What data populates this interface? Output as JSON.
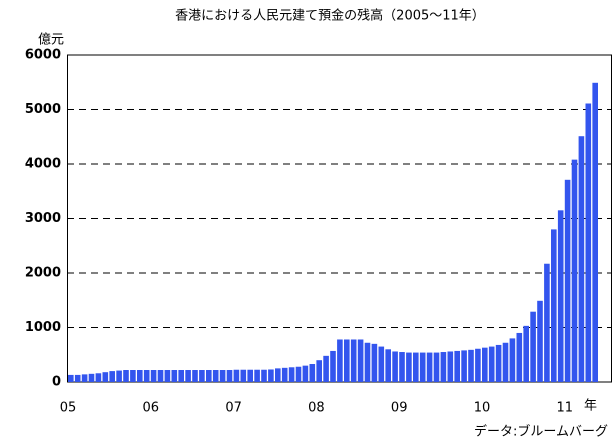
{
  "chart_data": {
    "type": "bar",
    "title": "香港における人民元建て預金の残高（2005～11年）",
    "y_unit": "億元",
    "x_unit": "年",
    "source": "データ:ブルームバーグ",
    "color": "#3355ee",
    "categories": [
      "05",
      null,
      null,
      null,
      null,
      null,
      null,
      null,
      null,
      null,
      null,
      null,
      "06",
      null,
      null,
      null,
      null,
      null,
      null,
      null,
      null,
      null,
      null,
      null,
      "07",
      null,
      null,
      null,
      null,
      null,
      null,
      null,
      null,
      null,
      null,
      null,
      "08",
      null,
      null,
      null,
      null,
      null,
      null,
      null,
      null,
      null,
      null,
      null,
      "09",
      null,
      null,
      null,
      null,
      null,
      null,
      null,
      null,
      null,
      null,
      null,
      "10",
      null,
      null,
      null,
      null,
      null,
      null,
      null,
      null,
      null,
      null,
      null,
      "11",
      null,
      null,
      null,
      null
    ],
    "values": [
      130,
      130,
      140,
      150,
      160,
      180,
      200,
      210,
      220,
      220,
      220,
      220,
      220,
      220,
      220,
      220,
      220,
      220,
      220,
      220,
      220,
      220,
      220,
      220,
      225,
      225,
      225,
      225,
      225,
      230,
      250,
      260,
      270,
      280,
      300,
      330,
      400,
      480,
      570,
      780,
      780,
      780,
      780,
      720,
      700,
      650,
      600,
      560,
      550,
      540,
      540,
      540,
      540,
      540,
      550,
      560,
      570,
      580,
      590,
      610,
      630,
      650,
      680,
      720,
      800,
      900,
      1030,
      1290,
      1490,
      2170,
      2800,
      3150,
      3710,
      4080,
      4510,
      5110,
      5490
    ],
    "ylim": [
      0,
      6000
    ],
    "yticks": [
      0,
      1000,
      2000,
      3000,
      4000,
      5000,
      6000
    ],
    "grid": true
  }
}
